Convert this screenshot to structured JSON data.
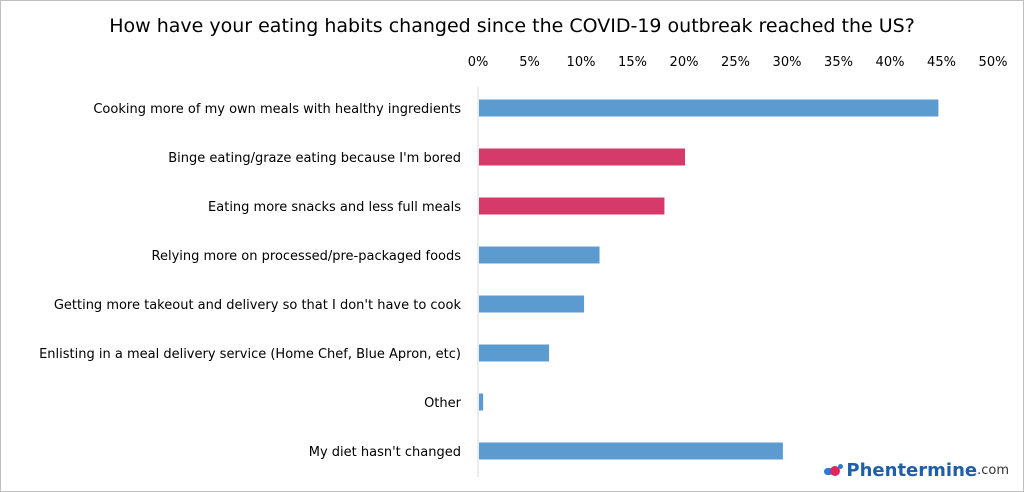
{
  "chart_data": {
    "type": "bar",
    "orientation": "horizontal",
    "title": "How have your eating habits changed since the COVID-19 outbreak reached the US?",
    "categories": [
      "Cooking more of my own meals with healthy ingredients",
      "Binge eating/graze eating because I'm bored",
      "Eating more snacks and less full meals",
      "Relying more on processed/pre-packaged foods",
      "Getting more takeout and delivery so that I don't have to cook",
      "Enlisting in a meal delivery service (Home Chef, Blue Apron, etc)",
      "Other",
      "My diet hasn't changed"
    ],
    "values": [
      44.7,
      20.1,
      18.1,
      11.8,
      10.3,
      6.9,
      0.5,
      29.6
    ],
    "colors": [
      "#5b9bd0",
      "#d63a6b",
      "#d63a6b",
      "#5b9bd0",
      "#5b9bd0",
      "#5b9bd0",
      "#5b9bd0",
      "#5b9bd0"
    ],
    "xlim": [
      0,
      50
    ],
    "xticks": [
      "0%",
      "5%",
      "10%",
      "15%",
      "20%",
      "25%",
      "30%",
      "35%",
      "40%",
      "45%",
      "50%"
    ],
    "xaxis_position": "top",
    "grid": false,
    "xlabel": "",
    "ylabel": ""
  },
  "logo": {
    "name": "Phentermine",
    "tld": ".com"
  }
}
